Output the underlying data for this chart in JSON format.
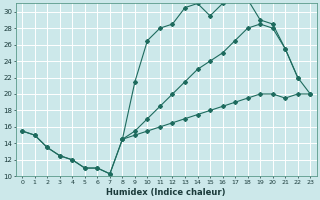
{
  "xlabel": "Humidex (Indice chaleur)",
  "bg_color": "#cce8ea",
  "grid_color": "#ffffff",
  "line_color": "#1e6b5e",
  "xlim": [
    -0.5,
    23.5
  ],
  "ylim": [
    10,
    31
  ],
  "xticks": [
    0,
    1,
    2,
    3,
    4,
    5,
    6,
    7,
    8,
    9,
    10,
    11,
    12,
    13,
    14,
    15,
    16,
    17,
    18,
    19,
    20,
    21,
    22,
    23
  ],
  "yticks": [
    10,
    12,
    14,
    16,
    18,
    20,
    22,
    24,
    26,
    28,
    30
  ],
  "line1_x": [
    0,
    1,
    2,
    3,
    4,
    5,
    6,
    7,
    8,
    9,
    10,
    11,
    12,
    13,
    14,
    15,
    16,
    17,
    18,
    19,
    20,
    21,
    22
  ],
  "line1_y": [
    15.5,
    15,
    13.5,
    12.5,
    12,
    11,
    11,
    10.3,
    14.5,
    21.5,
    26.5,
    28,
    28.5,
    30.5,
    31,
    29.5,
    31,
    31.5,
    31.5,
    29,
    28.5,
    25.5,
    22
  ],
  "line2_x": [
    0,
    1,
    2,
    3,
    4,
    5,
    6,
    7,
    8,
    9,
    10,
    11,
    12,
    13,
    14,
    15,
    16,
    17,
    18,
    19,
    20,
    21,
    22,
    23
  ],
  "line2_y": [
    15.5,
    15,
    13.5,
    12.5,
    12,
    11,
    11,
    10.3,
    14.5,
    15.5,
    17,
    18.5,
    20,
    21.5,
    23,
    24,
    25,
    26.5,
    28,
    28.5,
    28,
    25.5,
    22,
    20
  ],
  "line3_x": [
    8,
    9,
    10,
    11,
    12,
    13,
    14,
    15,
    16,
    17,
    18,
    19,
    20,
    21,
    22,
    23
  ],
  "line3_y": [
    14.5,
    15,
    15.5,
    16,
    16.5,
    17,
    17.5,
    18,
    18.5,
    19,
    19.5,
    20,
    20,
    19.5,
    20,
    20
  ]
}
